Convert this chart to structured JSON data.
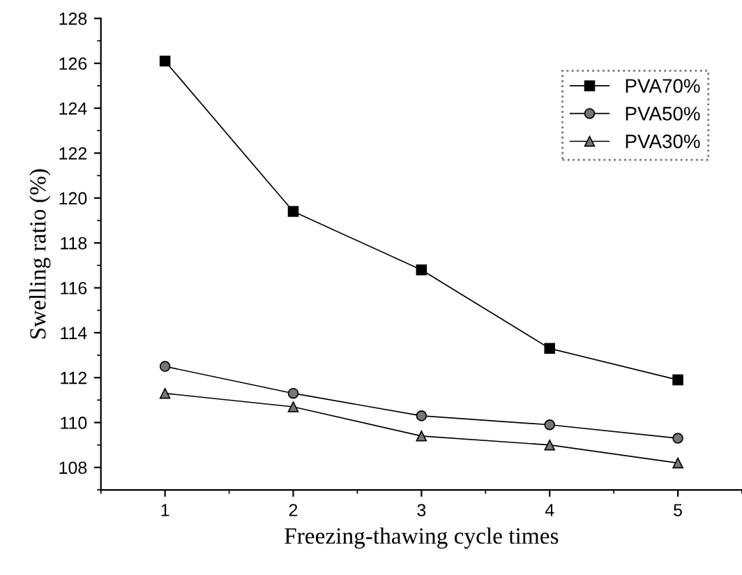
{
  "chart_data": {
    "type": "line",
    "xlabel": "Freezing-thawing cycle times",
    "ylabel": "Swelling ratio (%)",
    "x": [
      1,
      2,
      3,
      4,
      5
    ],
    "series": [
      {
        "name": "PVA70%",
        "color": "#000000",
        "marker": "square",
        "values": [
          126.1,
          119.4,
          116.8,
          113.3,
          111.9
        ]
      },
      {
        "name": "PVA50%",
        "color": "#000000",
        "marker": "circle",
        "values": [
          112.5,
          111.3,
          110.3,
          109.9,
          109.3
        ]
      },
      {
        "name": "PVA30%",
        "color": "#000000",
        "marker": "triangle",
        "values": [
          111.3,
          110.7,
          109.4,
          109.0,
          108.2
        ]
      }
    ],
    "xlim": [
      0.5,
      5.5
    ],
    "xticks": [
      1,
      2,
      3,
      4,
      5
    ],
    "ylim": [
      107,
      128
    ],
    "yticks": [
      108,
      110,
      112,
      114,
      116,
      118,
      120,
      122,
      124,
      126,
      128
    ],
    "line_style": "solid",
    "grid": false,
    "legend": "top right"
  }
}
